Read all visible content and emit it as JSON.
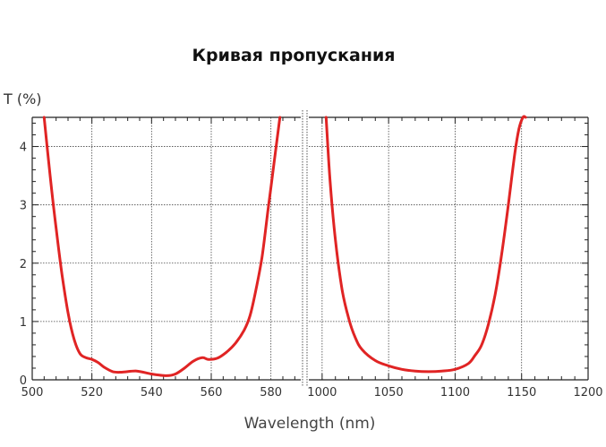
{
  "chart_data": {
    "type": "line",
    "title": "Кривая пропускания",
    "xlabel": "Wavelength (nm)",
    "ylabel": "T (%)",
    "ylim": [
      0,
      4.5
    ],
    "yticks": [
      "0",
      "1",
      "2",
      "3",
      "4"
    ],
    "grid": true,
    "legend": "none",
    "colors": {
      "curve": "#e02424",
      "axes": "#222222"
    },
    "panels": [
      {
        "xlim": [
          500,
          590
        ],
        "xticks": [
          "500",
          "520",
          "540",
          "560",
          "580"
        ],
        "series": [
          {
            "x": [
              504,
              506,
              508,
              510,
              512,
              514,
              516,
              518,
              520,
              522,
              524,
              527,
              530,
              535,
              540,
              545,
              548,
              551,
              554,
              557,
              559,
              562,
              565,
              568,
              571,
              573,
              575,
              577,
              579,
              581,
              583
            ],
            "values": [
              4.5,
              3.5,
              2.6,
              1.8,
              1.15,
              0.7,
              0.45,
              0.38,
              0.35,
              0.3,
              0.22,
              0.14,
              0.13,
              0.15,
              0.1,
              0.07,
              0.1,
              0.2,
              0.32,
              0.38,
              0.35,
              0.37,
              0.47,
              0.62,
              0.85,
              1.1,
              1.55,
              2.1,
              2.9,
              3.7,
              4.5
            ]
          }
        ]
      },
      {
        "xlim": [
          990,
          1200
        ],
        "xticks": [
          "1000",
          "1050",
          "1100",
          "1150",
          "1200"
        ],
        "series": [
          {
            "x": [
              1003,
              1006,
              1010,
              1015,
              1020,
              1025,
              1030,
              1040,
              1050,
              1060,
              1070,
              1080,
              1090,
              1100,
              1110,
              1115,
              1120,
              1125,
              1130,
              1135,
              1140,
              1145,
              1148,
              1151,
              1153
            ],
            "values": [
              4.5,
              3.4,
              2.4,
              1.55,
              1.05,
              0.72,
              0.52,
              0.33,
              0.24,
              0.18,
              0.15,
              0.14,
              0.15,
              0.18,
              0.28,
              0.42,
              0.6,
              0.95,
              1.45,
              2.15,
              3.0,
              3.9,
              4.3,
              4.5,
              4.5
            ]
          }
        ]
      }
    ]
  }
}
